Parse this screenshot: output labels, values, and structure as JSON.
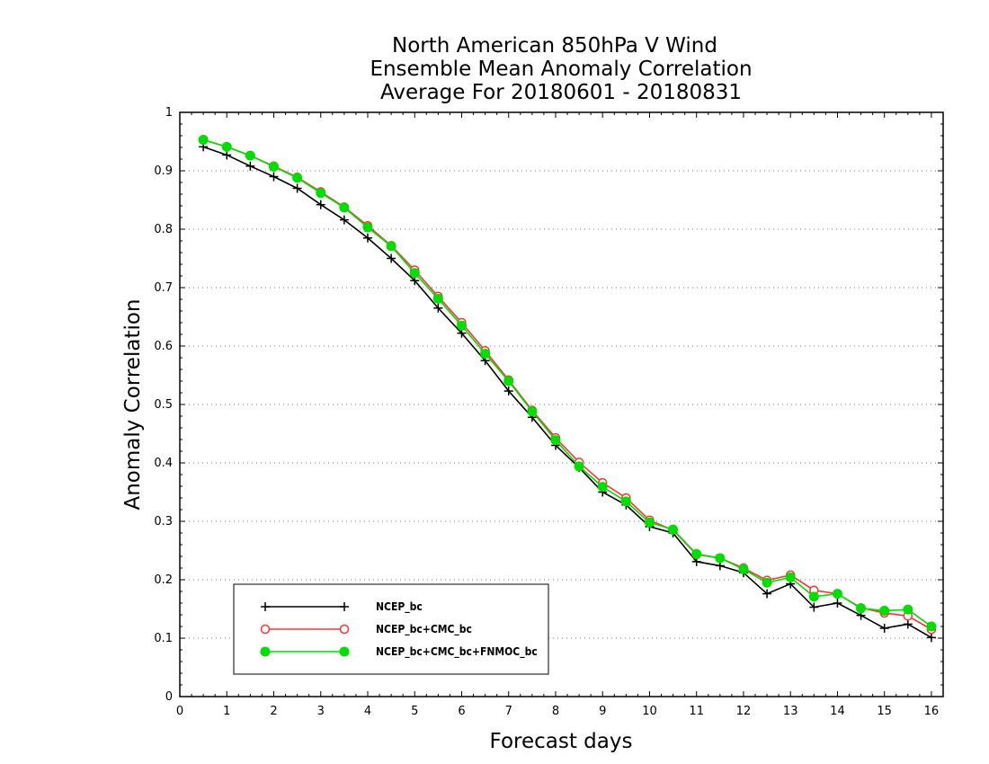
{
  "chart_data": {
    "type": "line",
    "title_lines": [
      "North American 850hPa V Wind",
      "Ensemble Mean Anomaly Correlation",
      "Average For 20180601 - 20180831"
    ],
    "xlabel": "Forecast days",
    "ylabel": "Anomaly Correlation",
    "xlim": [
      0,
      16.25
    ],
    "ylim": [
      0,
      1
    ],
    "xticks": [
      0,
      1,
      2,
      3,
      4,
      5,
      6,
      7,
      8,
      9,
      10,
      11,
      12,
      13,
      14,
      15,
      16
    ],
    "xtick_labels": [
      "0",
      "1",
      "2",
      "3",
      "4",
      "5",
      "6",
      "7",
      "8",
      "9",
      "10",
      "11",
      "12",
      "13",
      "14",
      "15",
      "16"
    ],
    "yticks": [
      0,
      0.1,
      0.2,
      0.3,
      0.4,
      0.5,
      0.6,
      0.7,
      0.8,
      0.9,
      1
    ],
    "ytick_labels": [
      "0",
      "0.1",
      "0.2",
      "0.3",
      "0.4",
      "0.5",
      "0.6",
      "0.7",
      "0.8",
      "0.9",
      "1"
    ],
    "grid": "horizontal-dotted",
    "legend_position": "bottom-left",
    "x": [
      0.5,
      1,
      1.5,
      2,
      2.5,
      3,
      3.5,
      4,
      4.5,
      5,
      5.5,
      6,
      6.5,
      7,
      7.5,
      8,
      8.5,
      9,
      9.5,
      10,
      10.5,
      11,
      11.5,
      12,
      12.5,
      13,
      13.5,
      14,
      14.5,
      15,
      15.5,
      16
    ],
    "series": [
      {
        "name": "NCEP_bc",
        "color": "#000000",
        "marker": "plus",
        "values": [
          0.941,
          0.927,
          0.908,
          0.89,
          0.87,
          0.842,
          0.816,
          0.785,
          0.75,
          0.712,
          0.665,
          0.622,
          0.575,
          0.523,
          0.478,
          0.43,
          0.392,
          0.35,
          0.328,
          0.291,
          0.28,
          0.231,
          0.224,
          0.212,
          0.176,
          0.193,
          0.153,
          0.16,
          0.139,
          0.117,
          0.124,
          0.101
        ]
      },
      {
        "name": "NCEP_bc+CMC_bc",
        "color": "#ff3333",
        "marker": "open-circle",
        "values": [
          0.953,
          0.941,
          0.926,
          0.908,
          0.889,
          0.864,
          0.838,
          0.806,
          0.772,
          0.73,
          0.685,
          0.64,
          0.592,
          0.542,
          0.49,
          0.443,
          0.401,
          0.366,
          0.34,
          0.302,
          0.285,
          0.243,
          0.237,
          0.22,
          0.199,
          0.208,
          0.182,
          0.176,
          0.152,
          0.143,
          0.138,
          0.115
        ]
      },
      {
        "name": "NCEP_bc+CMC_bc+FNMOC_bc",
        "color": "#00dd00",
        "marker": "filled-circle",
        "values": [
          0.953,
          0.941,
          0.926,
          0.907,
          0.888,
          0.862,
          0.837,
          0.803,
          0.771,
          0.725,
          0.681,
          0.635,
          0.587,
          0.54,
          0.488,
          0.439,
          0.394,
          0.359,
          0.334,
          0.298,
          0.286,
          0.244,
          0.237,
          0.218,
          0.195,
          0.204,
          0.171,
          0.176,
          0.151,
          0.147,
          0.149,
          0.12
        ]
      }
    ]
  }
}
